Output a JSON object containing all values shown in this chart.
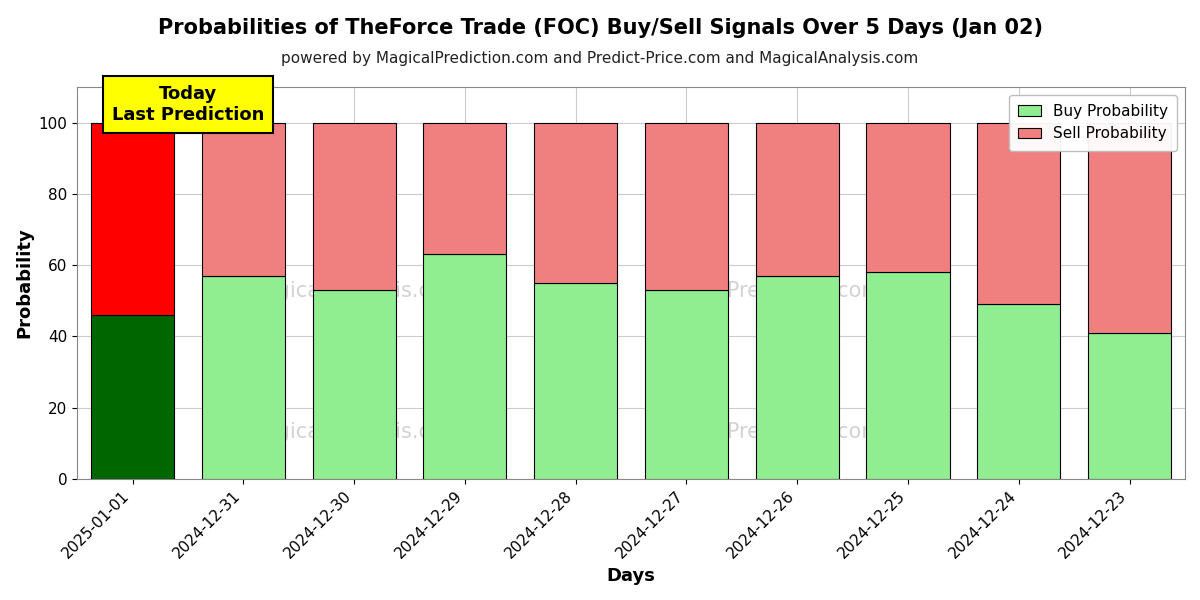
{
  "title": "Probabilities of TheForce Trade (FOC) Buy/Sell Signals Over 5 Days (Jan 02)",
  "subtitle": "powered by MagicalPrediction.com and Predict-Price.com and MagicalAnalysis.com",
  "xlabel": "Days",
  "ylabel": "Probability",
  "days": [
    "2025-01-01",
    "2024-12-31",
    "2024-12-30",
    "2024-12-29",
    "2024-12-28",
    "2024-12-27",
    "2024-12-26",
    "2024-12-25",
    "2024-12-24",
    "2024-12-23"
  ],
  "buy_values": [
    46,
    57,
    53,
    63,
    55,
    53,
    57,
    58,
    49,
    41
  ],
  "sell_values": [
    54,
    43,
    47,
    37,
    45,
    47,
    43,
    42,
    51,
    59
  ],
  "today_buy_color": "#006600",
  "today_sell_color": "#ff0000",
  "other_buy_color": "#90EE90",
  "other_sell_color": "#F08080",
  "bar_edge_color": "#000000",
  "ylim": [
    0,
    110
  ],
  "dashed_line_y": 110,
  "annotation_text": "Today\nLast Prediction",
  "annotation_facecolor": "#ffff00",
  "annotation_edgecolor": "#000000",
  "legend_buy_color": "#90EE90",
  "legend_sell_color": "#F08080",
  "grid_color": "#cccccc",
  "title_fontsize": 15,
  "subtitle_fontsize": 11,
  "label_fontsize": 13,
  "tick_fontsize": 11,
  "bg_color": "#ffffff"
}
